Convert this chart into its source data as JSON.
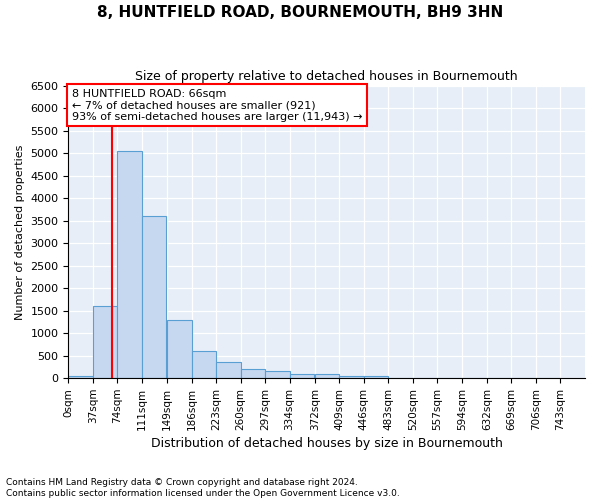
{
  "title": "8, HUNTFIELD ROAD, BOURNEMOUTH, BH9 3HN",
  "subtitle": "Size of property relative to detached houses in Bournemouth",
  "xlabel": "Distribution of detached houses by size in Bournemouth",
  "ylabel": "Number of detached properties",
  "footer_line1": "Contains HM Land Registry data © Crown copyright and database right 2024.",
  "footer_line2": "Contains public sector information licensed under the Open Government Licence v3.0.",
  "annotation_line1": "8 HUNTFIELD ROAD: 66sqm",
  "annotation_line2": "← 7% of detached houses are smaller (921)",
  "annotation_line3": "93% of semi-detached houses are larger (11,943) →",
  "bar_color": "#c5d8f0",
  "bar_edge_color": "#5a9fd4",
  "bg_color": "#e8eef8",
  "red_line_x": 66,
  "bins": [
    0,
    37,
    74,
    111,
    149,
    186,
    223,
    260,
    297,
    334,
    372,
    409,
    446,
    483,
    520,
    557,
    594,
    632,
    669,
    706,
    743
  ],
  "counts": [
    50,
    1600,
    5050,
    3600,
    1300,
    600,
    350,
    200,
    150,
    100,
    100,
    50,
    50,
    10,
    5,
    5,
    2,
    2,
    2,
    1
  ],
  "ylim": [
    0,
    6500
  ],
  "yticks": [
    0,
    500,
    1000,
    1500,
    2000,
    2500,
    3000,
    3500,
    4000,
    4500,
    5000,
    5500,
    6000,
    6500
  ],
  "tick_labels": [
    "0sqm",
    "37sqm",
    "74sqm",
    "111sqm",
    "149sqm",
    "186sqm",
    "223sqm",
    "260sqm",
    "297sqm",
    "334sqm",
    "372sqm",
    "409sqm",
    "446sqm",
    "483sqm",
    "520sqm",
    "557sqm",
    "594sqm",
    "632sqm",
    "669sqm",
    "706sqm",
    "743sqm"
  ],
  "title_fontsize": 11,
  "subtitle_fontsize": 9,
  "ylabel_fontsize": 8,
  "xlabel_fontsize": 9
}
